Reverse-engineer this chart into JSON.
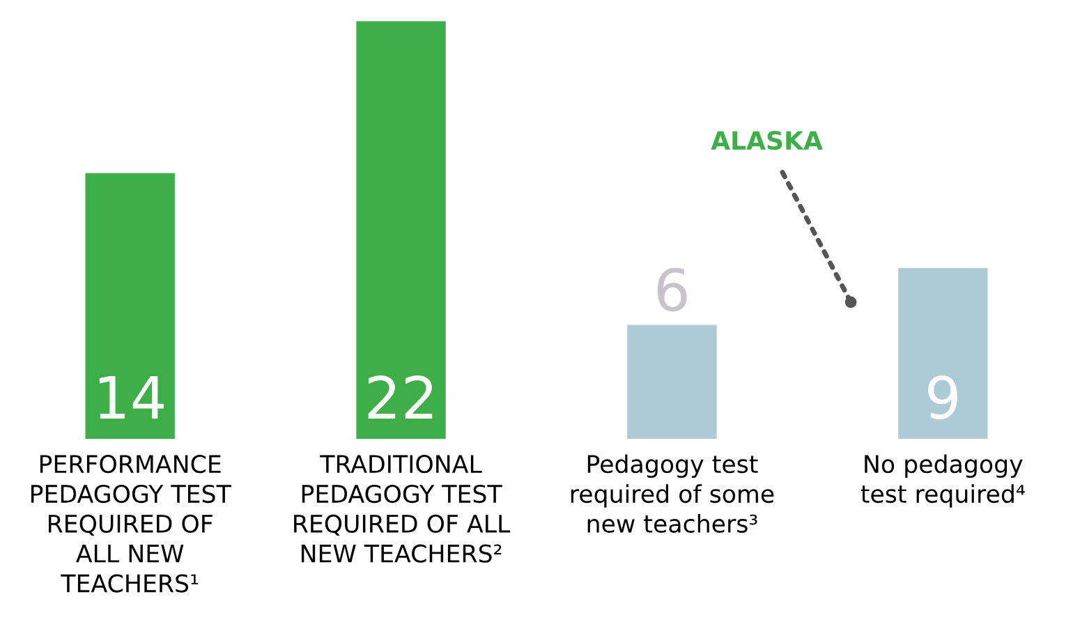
{
  "chart_data": {
    "type": "bar",
    "categories": [
      "PERFORMANCE\nPEDAGOGY TEST\nREQUIRED OF\nALL NEW\nTEACHERS¹",
      "TRADITIONAL\nPEDAGOGY TEST\nREQUIRED OF ALL\nNEW TEACHERS²",
      "Pedagogy test\nrequired of some\nnew teachers³",
      "No pedagogy\ntest required⁴"
    ],
    "values": [
      14,
      22,
      6,
      9
    ],
    "colors": [
      "#3eae49",
      "#3eae49",
      "#aecad5",
      "#aecad5"
    ],
    "data_labels": true,
    "annotations": [
      "ALASKA"
    ],
    "grid": false,
    "legend": false
  }
}
